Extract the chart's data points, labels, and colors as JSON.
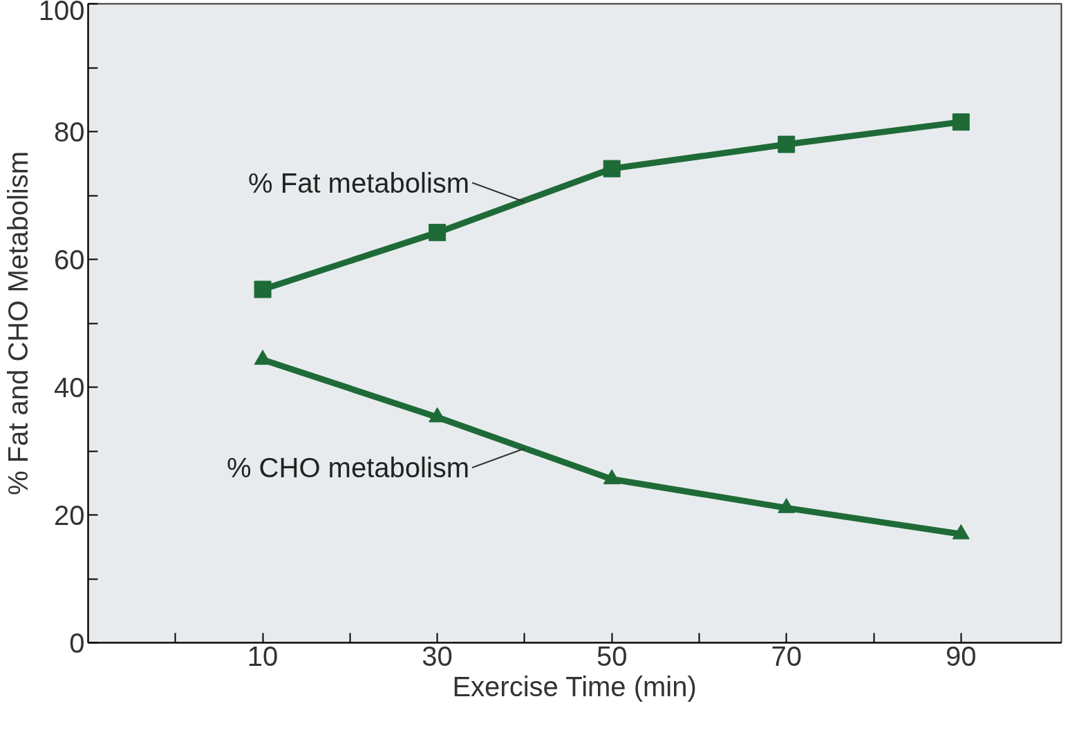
{
  "chart_data": {
    "type": "line",
    "xlabel": "Exercise Time (min)",
    "ylabel": "% Fat and CHO Metabolism",
    "x": [
      10,
      30,
      50,
      70,
      90
    ],
    "series": [
      {
        "color": "#1e6b38",
        "marker": "square",
        "values": [
          55.3,
          64.2,
          74.2,
          78,
          81.5
        ]
      },
      {
        "color": "#1e6b38",
        "marker": "triangle",
        "values": [
          44.3,
          35.3,
          25.6,
          21.1,
          17
        ]
      }
    ],
    "xlim": [
      -10,
      101.5
    ],
    "ylim": [
      0,
      100
    ],
    "xticks": [
      {
        "value": 0,
        "label": null
      },
      10,
      {
        "value": 20,
        "label": null
      },
      30,
      {
        "value": 40,
        "label": null
      },
      50,
      {
        "value": 60,
        "label": null
      },
      70,
      {
        "value": 80,
        "label": null
      },
      90
    ],
    "yticks": [
      0,
      {
        "value": 10,
        "label": null
      },
      20,
      {
        "value": 30,
        "label": null
      },
      40,
      {
        "value": 50,
        "label": null
      },
      60,
      {
        "value": 70,
        "label": null
      },
      80,
      {
        "value": 90,
        "label": null
      },
      100
    ],
    "annotations": [
      {
        "text": "% Fat metabolism",
        "x": 40,
        "y": 69
      },
      {
        "text": "% CHO metabolism",
        "x": 40,
        "y": 30.4
      }
    ],
    "grid": false,
    "line_style": "solid"
  }
}
